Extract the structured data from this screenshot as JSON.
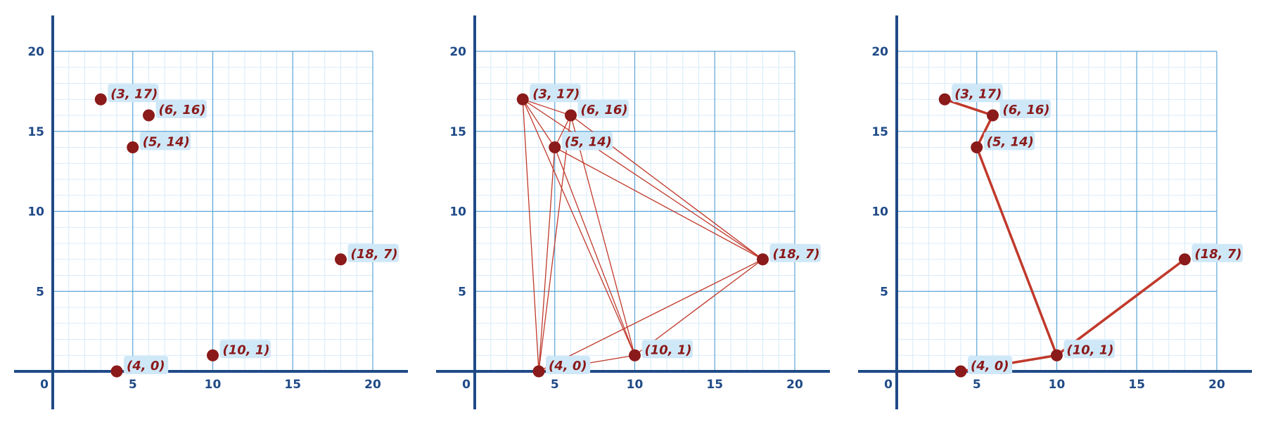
{
  "chart_data": [
    {
      "type": "scatter",
      "title": "",
      "xlabel": "",
      "ylabel": "",
      "xlim": [
        0,
        20
      ],
      "ylim": [
        0,
        20
      ],
      "x_ticks": [
        0,
        5,
        10,
        15,
        20
      ],
      "y_ticks": [
        5,
        10,
        15,
        20
      ],
      "grid": true,
      "points": [
        {
          "x": 3,
          "y": 17,
          "label": "(3, 17)"
        },
        {
          "x": 6,
          "y": 16,
          "label": "(6, 16)"
        },
        {
          "x": 5,
          "y": 14,
          "label": "(5, 14)"
        },
        {
          "x": 18,
          "y": 7,
          "label": "(18, 7)"
        },
        {
          "x": 10,
          "y": 1,
          "label": "(10, 1)"
        },
        {
          "x": 4,
          "y": 0,
          "label": "(4, 0)"
        }
      ],
      "edges": []
    },
    {
      "type": "scatter",
      "title": "",
      "xlabel": "",
      "ylabel": "",
      "xlim": [
        0,
        20
      ],
      "ylim": [
        0,
        20
      ],
      "x_ticks": [
        0,
        5,
        10,
        15,
        20
      ],
      "y_ticks": [
        5,
        10,
        15,
        20
      ],
      "grid": true,
      "points": [
        {
          "x": 3,
          "y": 17,
          "label": "(3, 17)"
        },
        {
          "x": 6,
          "y": 16,
          "label": "(6, 16)"
        },
        {
          "x": 5,
          "y": 14,
          "label": "(5, 14)"
        },
        {
          "x": 18,
          "y": 7,
          "label": "(18, 7)"
        },
        {
          "x": 10,
          "y": 1,
          "label": "(10, 1)"
        },
        {
          "x": 4,
          "y": 0,
          "label": "(4, 0)"
        }
      ],
      "edges": [
        [
          0,
          1
        ],
        [
          0,
          2
        ],
        [
          0,
          3
        ],
        [
          0,
          4
        ],
        [
          0,
          5
        ],
        [
          1,
          2
        ],
        [
          1,
          3
        ],
        [
          1,
          4
        ],
        [
          1,
          5
        ],
        [
          2,
          3
        ],
        [
          2,
          4
        ],
        [
          2,
          5
        ],
        [
          3,
          4
        ],
        [
          3,
          5
        ],
        [
          4,
          5
        ]
      ]
    },
    {
      "type": "line",
      "title": "",
      "xlabel": "",
      "ylabel": "",
      "xlim": [
        0,
        20
      ],
      "ylim": [
        0,
        20
      ],
      "x_ticks": [
        0,
        5,
        10,
        15,
        20
      ],
      "y_ticks": [
        5,
        10,
        15,
        20
      ],
      "grid": true,
      "points": [
        {
          "x": 3,
          "y": 17,
          "label": "(3, 17)"
        },
        {
          "x": 6,
          "y": 16,
          "label": "(6, 16)"
        },
        {
          "x": 5,
          "y": 14,
          "label": "(5, 14)"
        },
        {
          "x": 18,
          "y": 7,
          "label": "(18, 7)"
        },
        {
          "x": 10,
          "y": 1,
          "label": "(10, 1)"
        },
        {
          "x": 4,
          "y": 0,
          "label": "(4, 0)"
        }
      ],
      "edges": [
        [
          0,
          1
        ],
        [
          1,
          2
        ],
        [
          2,
          4
        ],
        [
          4,
          3
        ],
        [
          4,
          5
        ]
      ]
    }
  ],
  "colors": {
    "axis": "#1f4a86",
    "major_grid": "#5aa5d6",
    "minor_grid": "#d7ebf8",
    "point": "#8b1a1a",
    "label_text": "#8b1a1a",
    "label_bg": "#cfe8f8",
    "edge_thin": "#c0392b",
    "edge_thick": "#c0392b",
    "tick_text": "#1f4a86"
  }
}
